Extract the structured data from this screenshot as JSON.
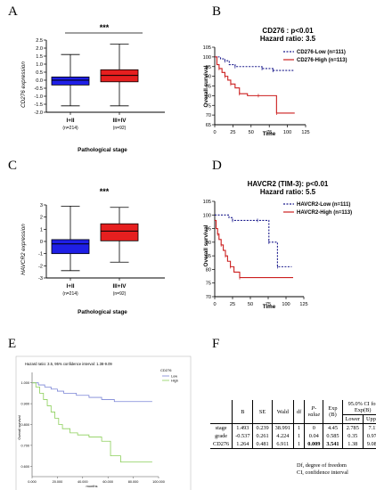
{
  "panels": {
    "A": {
      "letter": "A",
      "significance": "***",
      "ylabel": "CD276 expression",
      "xlabel": "Pathological stage",
      "yticks": [
        "2.5",
        "2.0",
        "1.5",
        "1.0",
        "0.5",
        "0.0",
        "-0.5",
        "-1.0",
        "-1.5",
        "-2.0"
      ],
      "groups": [
        {
          "label": "I+II",
          "n": "(n=214)",
          "color": "#1f1fe6",
          "min": -1.6,
          "q1": -0.3,
          "median": 0.0,
          "q3": 0.2,
          "max": 1.6
        },
        {
          "label": "III+IV",
          "n": "(n=92)",
          "color": "#e61f1f",
          "min": -1.6,
          "q1": -0.1,
          "median": 0.3,
          "q3": 0.65,
          "max": 2.25
        }
      ]
    },
    "B": {
      "letter": "B",
      "title": "CD276 : p<0.01",
      "subtitle": "Hazard ratio: 3.5",
      "ylabel": "Overall survival",
      "xlabel": "Time",
      "legend": [
        "CD276-Low (n=111)",
        "CD276-High (n=113)"
      ],
      "yticks": [
        "105",
        "100",
        "95",
        "90",
        "85",
        "80",
        "75",
        "70",
        "65"
      ],
      "xticks": [
        "0",
        "25",
        "50",
        "75",
        "100",
        "125"
      ]
    },
    "C": {
      "letter": "C",
      "significance": "***",
      "ylabel": "HAVCR2 expression",
      "xlabel": "Pathological stage",
      "yticks": [
        "3",
        "2",
        "1",
        "0",
        "-1",
        "-2",
        "-3"
      ],
      "groups": [
        {
          "label": "I+II",
          "n": "(n=214)",
          "color": "#1f1fe6",
          "min": -2.4,
          "q1": -1.0,
          "median": -0.2,
          "q3": 0.15,
          "max": 2.9
        },
        {
          "label": "III+IV",
          "n": "(n=92)",
          "color": "#e61f1f",
          "min": -1.7,
          "q1": 0.05,
          "median": 0.85,
          "q3": 1.45,
          "max": 2.8
        }
      ]
    },
    "D": {
      "letter": "D",
      "title": "HAVCR2 (TIM-3): p<0.01",
      "subtitle": "Hazard ratio: 5.5",
      "ylabel": "Overall survival",
      "xlabel": "Time",
      "legend": [
        "HAVCR2-Low (n=111)",
        "HAVCR2-High (n=113)"
      ],
      "yticks": [
        "105",
        "100",
        "95",
        "90",
        "85",
        "80",
        "75",
        "70"
      ],
      "xticks": [
        "0",
        "25",
        "50",
        "75",
        "100",
        "125"
      ]
    },
    "E": {
      "letter": "E",
      "title": "Hazard ratio: 3.5, 95% confidence interval: 1.38-9.09",
      "ylabel": "Overall survival",
      "xlabel": "months",
      "legend_title": "CD276",
      "legend": [
        "Low",
        "High"
      ],
      "yticks": [
        "1.000",
        "0.900",
        "0.800",
        "0.700",
        "0.600"
      ],
      "xticks": [
        "0.000",
        "20.000",
        "40.000",
        "60.000",
        "80.000",
        "100.000"
      ]
    },
    "F": {
      "letter": "F",
      "ci_header": "95.0% CI for Exp(B)",
      "headers": [
        "",
        "B",
        "SE",
        "Wald",
        "df",
        "P-value",
        "Exp (B)",
        "Lower",
        "Upper"
      ],
      "rows": [
        [
          "stage",
          "1.493",
          "0.239",
          "38.991",
          "1",
          "0",
          "4.45",
          "2.785",
          "7.11"
        ],
        [
          "grade",
          "-0.537",
          "0.261",
          "4.224",
          "1",
          "0.04",
          "0.585",
          "0.35",
          "0.975"
        ],
        [
          "CD276",
          "1.264",
          "0.481",
          "6.911",
          "1",
          "0.009",
          "3.541",
          "1.38",
          "9.089"
        ]
      ],
      "footnote1": "Df, degree of freedom",
      "footnote2": "CI, confidence interval"
    }
  },
  "chart_data": [
    {
      "type": "box",
      "panel": "A",
      "categories": [
        "I+II",
        "III+IV"
      ],
      "ylabel": "CD276 expression",
      "xlabel": "Pathological stage",
      "ylim": [
        -2.0,
        2.5
      ],
      "boxes": [
        {
          "category": "I+II",
          "min": -1.6,
          "q1": -0.3,
          "median": 0.0,
          "q3": 0.2,
          "max": 1.6
        },
        {
          "category": "III+IV",
          "min": -1.6,
          "q1": -0.1,
          "median": 0.3,
          "q3": 0.65,
          "max": 2.25
        }
      ]
    },
    {
      "type": "line",
      "panel": "B",
      "title": "CD276 : p<0.01",
      "xlabel": "Time",
      "ylabel": "Overall survival",
      "xlim": [
        0,
        125
      ],
      "ylim": [
        65,
        105
      ],
      "series": [
        {
          "name": "CD276-Low (n=111)",
          "color": "#1a1a8c",
          "dash": true,
          "x": [
            0,
            8,
            14,
            20,
            28,
            50,
            65,
            75,
            80,
            110
          ],
          "y": [
            100,
            99,
            98,
            96,
            95,
            95,
            94,
            94,
            93,
            93
          ]
        },
        {
          "name": "CD276-High (n=113)",
          "color": "#cc1f1f",
          "dash": false,
          "x": [
            0,
            3,
            6,
            10,
            14,
            18,
            22,
            28,
            34,
            45,
            60,
            82,
            85,
            110
          ],
          "y": [
            100,
            96,
            94,
            92,
            90,
            88,
            86,
            84,
            81,
            80,
            80,
            80,
            71,
            71
          ]
        }
      ]
    },
    {
      "type": "box",
      "panel": "C",
      "categories": [
        "I+II",
        "III+IV"
      ],
      "ylabel": "HAVCR2 expression",
      "xlabel": "Pathological stage",
      "ylim": [
        -3,
        3
      ],
      "boxes": [
        {
          "category": "I+II",
          "min": -2.4,
          "q1": -1.0,
          "median": -0.2,
          "q3": 0.15,
          "max": 2.9
        },
        {
          "category": "III+IV",
          "min": -1.7,
          "q1": 0.05,
          "median": 0.85,
          "q3": 1.45,
          "max": 2.8
        }
      ]
    },
    {
      "type": "line",
      "panel": "D",
      "title": "HAVCR2 (TIM-3): p<0.01",
      "xlabel": "Time",
      "ylabel": "Overall survival",
      "xlim": [
        0,
        125
      ],
      "ylim": [
        70,
        105
      ],
      "series": [
        {
          "name": "HAVCR2-Low (n=111)",
          "color": "#1a1a8c",
          "dash": true,
          "x": [
            0,
            20,
            25,
            40,
            60,
            74,
            76,
            84,
            88,
            108
          ],
          "y": [
            100,
            99,
            98,
            98,
            98,
            98,
            90,
            90,
            81,
            81
          ]
        },
        {
          "name": "HAVCR2-High (n=113)",
          "color": "#cc1f1f",
          "dash": false,
          "x": [
            0,
            2,
            4,
            6,
            9,
            12,
            15,
            18,
            22,
            27,
            35,
            110
          ],
          "y": [
            98,
            95,
            93,
            91,
            89,
            87,
            85,
            83,
            81,
            79,
            77,
            77
          ]
        }
      ]
    },
    {
      "type": "line",
      "panel": "E",
      "title": "Hazard ratio: 3.5, 95% confidence interval: 1.38-9.09",
      "xlabel": "months",
      "ylabel": "Overall survival",
      "xlim": [
        0,
        100
      ],
      "ylim": [
        0.55,
        1.05
      ],
      "series": [
        {
          "name": "Low",
          "color": "#7b85d6",
          "dash": false,
          "x": [
            0,
            5,
            10,
            15,
            20,
            25,
            30,
            35,
            40,
            45,
            50,
            55,
            60,
            65,
            70,
            80,
            90,
            95
          ],
          "y": [
            1.0,
            0.99,
            0.98,
            0.97,
            0.96,
            0.95,
            0.95,
            0.94,
            0.94,
            0.93,
            0.93,
            0.92,
            0.92,
            0.91,
            0.91,
            0.91,
            0.91,
            0.91
          ]
        },
        {
          "name": "High",
          "color": "#8ccf5a",
          "dash": false,
          "x": [
            0,
            3,
            6,
            9,
            12,
            15,
            18,
            21,
            24,
            30,
            36,
            45,
            55,
            62,
            70,
            80,
            95
          ],
          "y": [
            1.0,
            0.98,
            0.95,
            0.92,
            0.89,
            0.86,
            0.83,
            0.8,
            0.78,
            0.76,
            0.75,
            0.74,
            0.72,
            0.65,
            0.62,
            0.62,
            0.62
          ]
        }
      ]
    }
  ]
}
